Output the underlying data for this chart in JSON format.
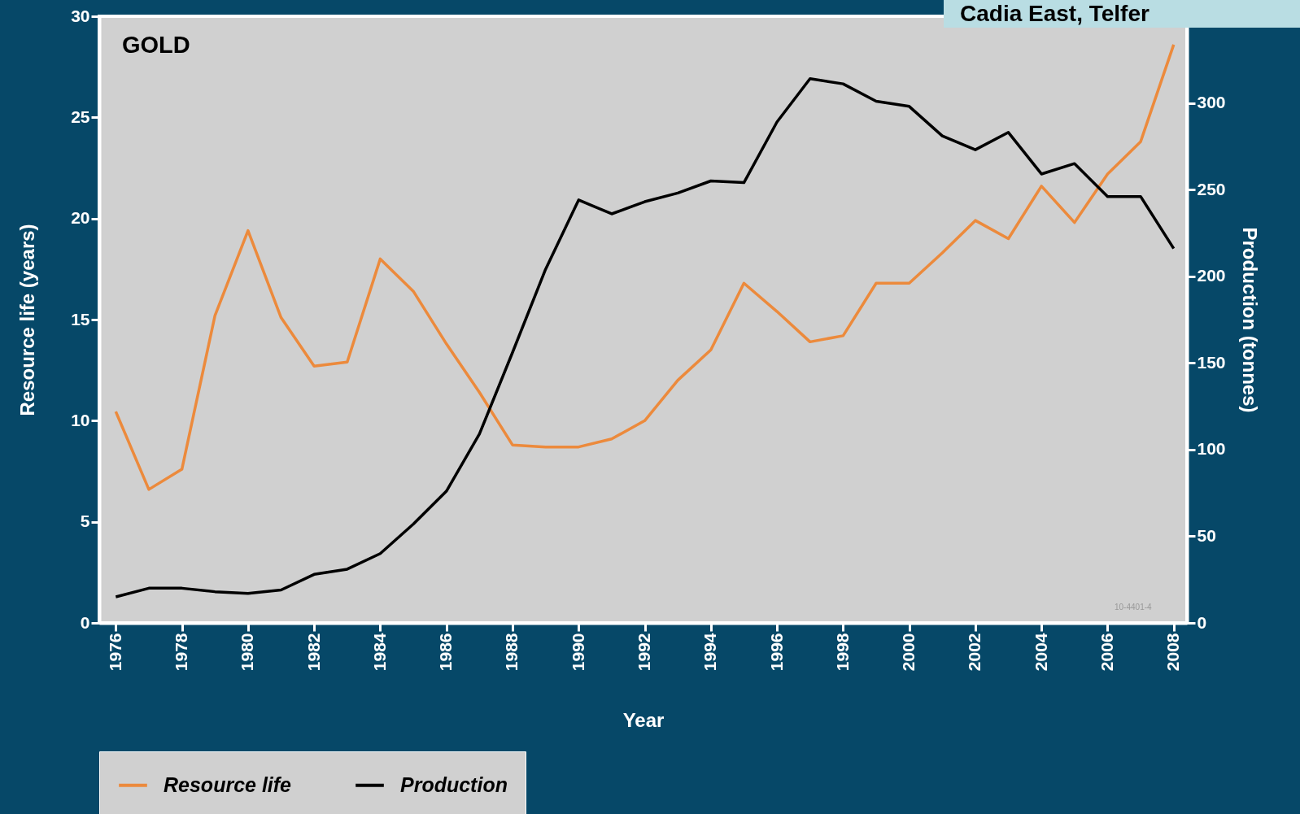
{
  "chart_data": {
    "type": "line",
    "title": "GOLD",
    "xlabel": "Year",
    "ylabel": "Resource life (years)",
    "y2label": "Production (tonnes)",
    "x": [
      1976,
      1977,
      1978,
      1979,
      1980,
      1981,
      1982,
      1983,
      1984,
      1985,
      1986,
      1987,
      1988,
      1989,
      1990,
      1991,
      1992,
      1993,
      1994,
      1995,
      1996,
      1997,
      1998,
      1999,
      2000,
      2001,
      2002,
      2003,
      2004,
      2005,
      2006,
      2007,
      2008
    ],
    "xlim": [
      1975.5,
      2008.4
    ],
    "xticks": [
      1976,
      1978,
      1980,
      1982,
      1984,
      1986,
      1988,
      1990,
      1992,
      1994,
      1996,
      1998,
      2000,
      2002,
      2004,
      2006,
      2008
    ],
    "ylim": [
      0,
      30
    ],
    "yticks": [
      0,
      5,
      10,
      15,
      20,
      25,
      30
    ],
    "y2lim": [
      0,
      350
    ],
    "y2ticks": [
      0,
      50,
      100,
      150,
      200,
      250,
      300
    ],
    "series": [
      {
        "name": "Resource life",
        "color": "#ec8a3c",
        "values": [
          10.45,
          6.6,
          7.6,
          15.2,
          19.4,
          15.1,
          12.7,
          12.9,
          18.0,
          16.4,
          13.8,
          11.4,
          8.8,
          8.7,
          8.7,
          9.1,
          10.0,
          12.0,
          13.5,
          16.8,
          15.4,
          13.9,
          14.2,
          16.8,
          16.8,
          18.3,
          19.9,
          19.0,
          21.6,
          19.8,
          22.2,
          23.8,
          28.6
        ]
      },
      {
        "name": "Production",
        "color": "#000000",
        "axis": "y2",
        "values": [
          15,
          20,
          20,
          18,
          17,
          19,
          28,
          31,
          40,
          57,
          76,
          109,
          156,
          204,
          244,
          236,
          243,
          248,
          255,
          254,
          289,
          314,
          311,
          301,
          298,
          281,
          273,
          283,
          259,
          265,
          246,
          246,
          216
        ]
      }
    ],
    "legend": "bottom",
    "grid": false,
    "annotations": [
      "Cadia East, Telfer",
      "10-4401-4"
    ]
  }
}
